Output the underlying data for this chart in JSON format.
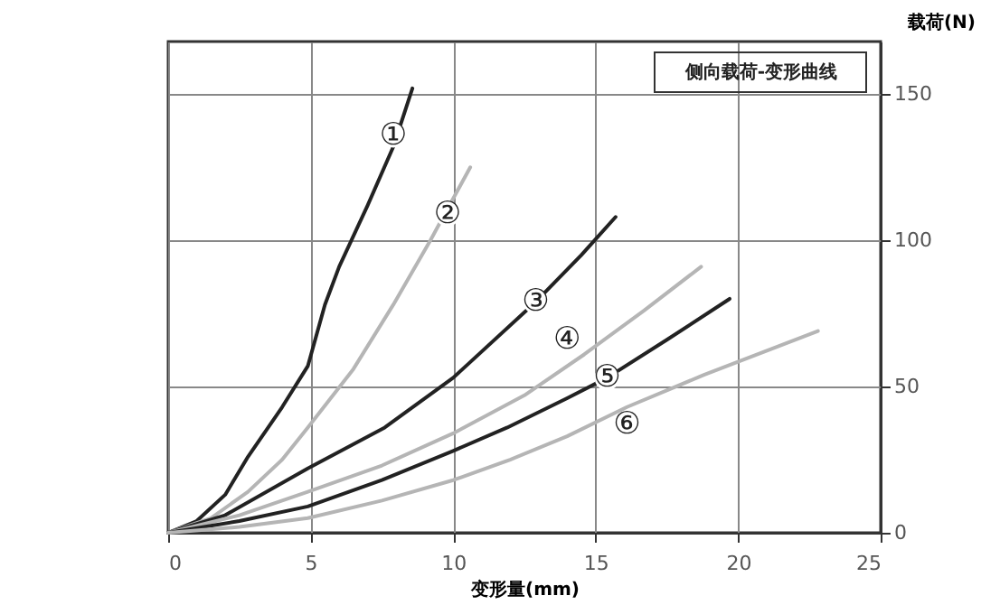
{
  "chart_data": {
    "type": "line",
    "title": "侧向载荷-变形曲线",
    "xlabel": "变形量(mm)",
    "ylabel": "载荷(N)",
    "xlim": [
      0,
      25
    ],
    "xticks": [
      0,
      5,
      10,
      15,
      20,
      25
    ],
    "ylim": [
      0,
      168
    ],
    "yticks": [
      0,
      50,
      100,
      150
    ],
    "grid": true,
    "marker": "none",
    "line_style": "solid",
    "series": [
      {
        "color": "#222222",
        "x": [
          0,
          1,
          2,
          2.8,
          4,
          4.9,
          5.5,
          6,
          7,
          7.9,
          8.57
        ],
        "values": [
          0,
          4,
          13,
          26,
          43,
          57,
          78,
          91,
          112,
          132,
          152
        ]
      },
      {
        "color": "#b5b5b5",
        "x": [
          0,
          1.5,
          2.8,
          4,
          4.9,
          6.5,
          7.9,
          9.2,
          10.6
        ],
        "values": [
          0,
          5,
          14,
          25,
          36,
          56,
          78,
          100,
          125
        ]
      },
      {
        "color": "#222222",
        "x": [
          0,
          2,
          4.9,
          7.6,
          10,
          12.9,
          14.5,
          15.7
        ],
        "values": [
          0,
          6,
          22,
          36,
          53,
          79,
          95,
          108
        ]
      },
      {
        "color": "#b5b5b5",
        "x": [
          0,
          2.5,
          4.9,
          7.5,
          10,
          12.5,
          14.6,
          16.7,
          18.7
        ],
        "values": [
          0,
          6,
          14,
          23,
          34,
          47,
          61,
          76,
          91
        ]
      },
      {
        "color": "#222222",
        "x": [
          0,
          2.5,
          4.9,
          7.5,
          10,
          11.9,
          14,
          15.4,
          17.5,
          19.7
        ],
        "values": [
          0,
          4,
          9,
          18,
          28,
          36,
          46,
          53,
          66,
          80
        ]
      },
      {
        "color": "#b5b5b5",
        "x": [
          0,
          2.5,
          4.9,
          7.5,
          10,
          12,
          14,
          16.1,
          18.8,
          22.8
        ],
        "values": [
          0,
          2,
          5,
          11,
          18,
          25,
          33,
          43,
          54,
          69
        ]
      }
    ],
    "annotations": [
      {
        "text": "①",
        "x": 7.9,
        "y": 136
      },
      {
        "text": "②",
        "x": 9.8,
        "y": 109
      },
      {
        "text": "③",
        "x": 12.9,
        "y": 79
      },
      {
        "text": "④",
        "x": 14.0,
        "y": 66
      },
      {
        "text": "⑤",
        "x": 15.4,
        "y": 53
      },
      {
        "text": "⑥",
        "x": 16.1,
        "y": 37
      }
    ]
  }
}
